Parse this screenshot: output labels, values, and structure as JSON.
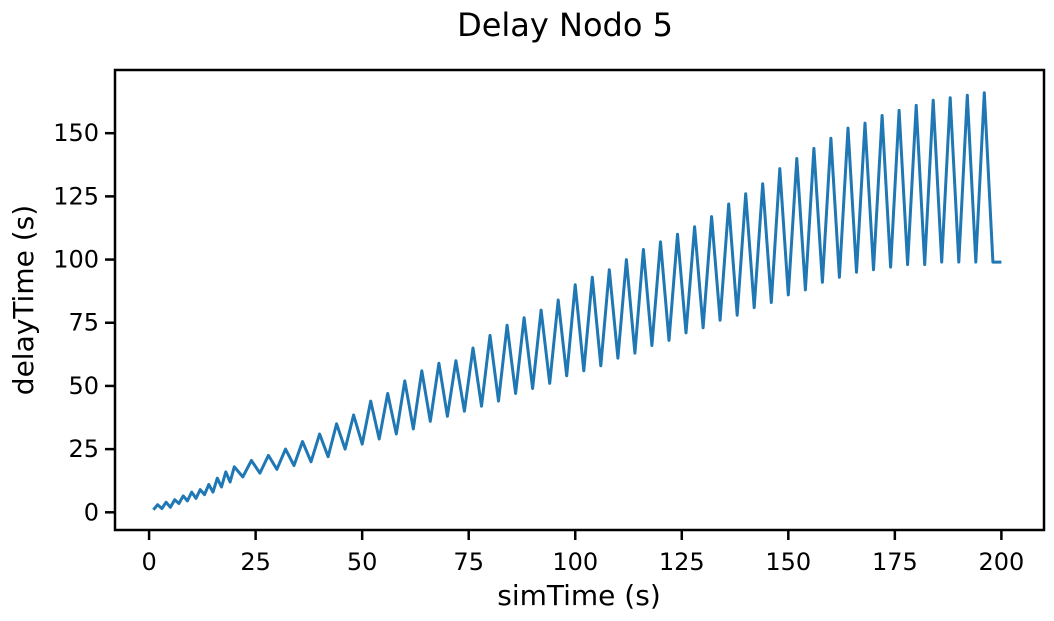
{
  "chart_data": {
    "type": "line",
    "title": "Delay Nodo 5",
    "xlabel": "simTime (s)",
    "ylabel": "delayTime (s)",
    "xlim": [
      -8,
      210
    ],
    "ylim": [
      -7,
      175
    ],
    "x_ticks": [
      0,
      25,
      50,
      75,
      100,
      125,
      150,
      175,
      200
    ],
    "y_ticks": [
      0,
      25,
      50,
      75,
      100,
      125,
      150
    ],
    "grid": false,
    "legend": "none",
    "line_color": "#1f77b4",
    "series": [
      {
        "x": [
          1,
          2,
          3,
          4,
          5,
          6,
          7,
          8,
          9,
          10,
          11,
          12,
          13,
          14,
          15,
          16,
          17,
          18,
          19,
          20,
          22,
          24,
          26,
          28,
          30,
          32,
          34,
          36,
          38,
          40,
          42,
          44,
          46,
          48,
          50,
          52,
          54,
          56,
          58,
          60,
          62,
          64,
          66,
          68,
          70,
          72,
          74,
          76,
          78,
          80,
          82,
          84,
          86,
          88,
          90,
          92,
          94,
          96,
          98,
          100,
          102,
          104,
          106,
          108,
          110,
          112,
          114,
          116,
          118,
          120,
          122,
          124,
          126,
          128,
          130,
          132,
          134,
          136,
          138,
          140,
          142,
          144,
          146,
          148,
          150,
          152,
          154,
          156,
          158,
          160,
          162,
          164,
          166,
          168,
          170,
          172,
          174,
          176,
          178,
          180,
          182,
          184,
          186,
          188,
          190,
          192,
          194,
          196,
          198,
          200
        ],
        "y": [
          1.0,
          3.0,
          1.5,
          4.0,
          2.0,
          5.0,
          3.5,
          6.5,
          4.5,
          8.0,
          5.5,
          9.0,
          7.0,
          11.0,
          8.0,
          13.5,
          10.0,
          16.0,
          12.0,
          18.0,
          14.0,
          20.5,
          15.5,
          22.5,
          17.0,
          25.0,
          18.5,
          28.0,
          20.0,
          31.0,
          22.0,
          35.0,
          25.0,
          38.5,
          27.0,
          44.0,
          29.0,
          47.0,
          31.0,
          52.0,
          33.0,
          56.0,
          36.0,
          59.0,
          38.0,
          60.0,
          40.0,
          65.0,
          42.0,
          70.0,
          44.0,
          74.0,
          47.0,
          77.0,
          49.0,
          80.0,
          51.0,
          84.0,
          54.0,
          90.0,
          56.0,
          93.0,
          58.0,
          96.0,
          61.0,
          100.0,
          63.0,
          104.0,
          66.0,
          107.0,
          68.0,
          110.0,
          71.0,
          113.0,
          73.0,
          117.0,
          76.0,
          122.0,
          78.0,
          126.0,
          81.0,
          130.0,
          83.0,
          136.0,
          86.0,
          140.0,
          88.0,
          144.0,
          91.0,
          148.0,
          93.0,
          152.0,
          95.0,
          154.0,
          96.0,
          157.0,
          97.0,
          159.0,
          98.0,
          161.0,
          98.0,
          163.0,
          99.0,
          164.0,
          99.0,
          165.0,
          99.0,
          166.0,
          99.0,
          99.0
        ]
      }
    ]
  }
}
